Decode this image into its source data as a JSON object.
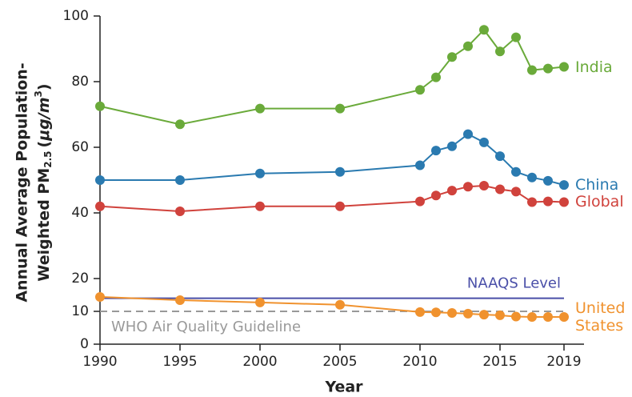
{
  "chart_data": {
    "type": "line",
    "x_label": "Year",
    "y_label": [
      "Annual Average Population-",
      "Weighted PM",
      "2.5",
      "(",
      "μg/m",
      "3",
      ")"
    ],
    "x": [
      1990,
      1995,
      2000,
      2005,
      2010,
      2011,
      2012,
      2013,
      2014,
      2015,
      2016,
      2017,
      2018,
      2019
    ],
    "xlim": [
      1990,
      2020
    ],
    "xticks": [
      1990,
      1995,
      2000,
      2005,
      2010,
      2015,
      2019
    ],
    "ylim": [
      0,
      100
    ],
    "yticks": [
      0,
      10,
      20,
      40,
      60,
      80,
      100
    ],
    "series": [
      {
        "name": "India",
        "color": "#6aaa3a",
        "values": [
          72.5,
          67,
          71.8,
          71.8,
          77.5,
          81.3,
          87.5,
          90.8,
          95.8,
          89.2,
          93.5,
          83.5,
          84,
          84.5
        ]
      },
      {
        "name": "China",
        "color": "#2a7ab0",
        "values": [
          50,
          50,
          52,
          52.5,
          54.5,
          59,
          60.3,
          64,
          61.5,
          57.3,
          52.5,
          50.8,
          49.8,
          48.5
        ]
      },
      {
        "name": "Global",
        "color": "#d0423c",
        "values": [
          42,
          40.5,
          42,
          42,
          43.5,
          45.3,
          46.8,
          48,
          48.3,
          47.2,
          46.5,
          43.3,
          43.5,
          43.3
        ]
      },
      {
        "name": "United States",
        "color": "#f0922e",
        "values": [
          14.4,
          13.4,
          12.7,
          12,
          9.8,
          9.7,
          9.5,
          9.3,
          9.0,
          8.8,
          8.4,
          8.3,
          8.3,
          8.3
        ]
      }
    ],
    "reference_lines": [
      {
        "label": "NAAQS Level",
        "value": 14,
        "color": "#4a4fa8",
        "style": "solid"
      },
      {
        "label": "WHO Air Quality Guideline",
        "value": 10,
        "color": "#999999",
        "style": "dashed"
      }
    ]
  }
}
